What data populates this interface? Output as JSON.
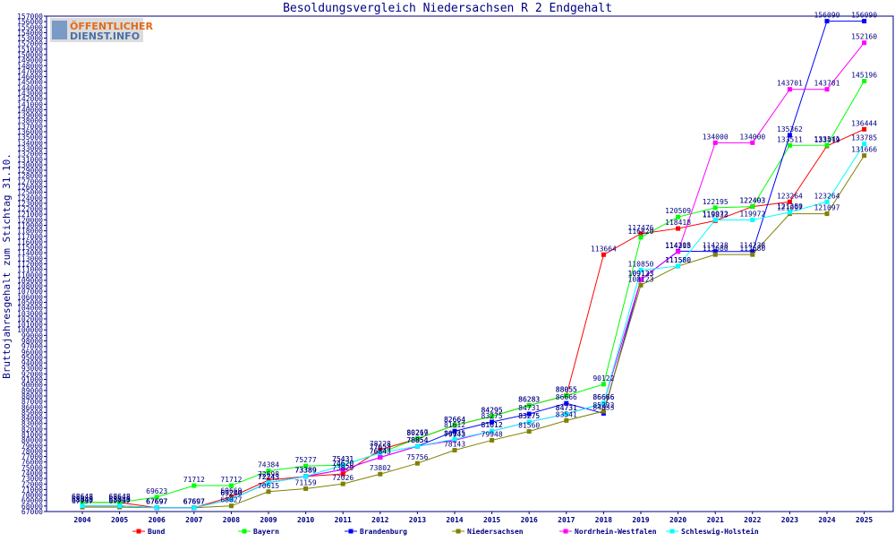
{
  "logo": {
    "line1": "ÖFFENTLICHER",
    "line2": "DIENST.INFO"
  },
  "chart_data": {
    "type": "line",
    "title": "Besoldungsvergleich Niedersachsen R 2 Endgehalt",
    "xlabel": "",
    "ylabel": "Bruttojahresgehalt zum Stichtag 31.10.",
    "ylim": [
      67000,
      157000
    ],
    "ytick_step": 1000,
    "grid": false,
    "legend_position": "bottom",
    "categories": [
      "2004",
      "2005",
      "2006",
      "2007",
      "2008",
      "2009",
      "2010",
      "2011",
      "2012",
      "2013",
      "2014",
      "2015",
      "2016",
      "2017",
      "2018",
      "2019",
      "2020",
      "2021",
      "2022",
      "2023",
      "2024",
      "2025"
    ],
    "series": [
      {
        "name": "Bund",
        "color": "#ff0000",
        "values": [
          68648,
          68648,
          67697,
          67697,
          69669,
          72698,
          73389,
          73829,
          78228,
          80219,
          82664,
          84295,
          86283,
          88055,
          113664,
          117476,
          118418,
          119833,
          122403,
          123264,
          133419,
          136444
        ]
      },
      {
        "name": "Bayern",
        "color": "#00ff00",
        "values": [
          68648,
          68648,
          69623,
          71712,
          71712,
          74384,
          75277,
          75431,
          77653,
          80267,
          82664,
          84295,
          86283,
          88055,
          90122,
          116820,
          120509,
          122195,
          122403,
          133511,
          133541,
          145196
        ]
      },
      {
        "name": "Brandenburg",
        "color": "#0000ff",
        "values": [
          68040,
          68040,
          67697,
          67697,
          69240,
          72243,
          73389,
          74620,
          76843,
          78854,
          81612,
          83275,
          84731,
          86666,
          84833,
          109133,
          114305,
          114238,
          114238,
          135362,
          156090,
          156090
        ]
      },
      {
        "name": "Niedersachsen",
        "color": "#808000",
        "values": [
          67797,
          67797,
          67697,
          67697,
          68027,
          70615,
          71159,
          72026,
          73802,
          75756,
          78143,
          79948,
          81560,
          83541,
          85222,
          108123,
          111580,
          113680,
          113680,
          121097,
          121097,
          131666
        ]
      },
      {
        "name": "Nordrhein-Westfalen",
        "color": "#ff00ff",
        "values": [
          68040,
          68040,
          67697,
          67697,
          69240,
          72243,
          73389,
          74620,
          76843,
          78854,
          79943,
          81612,
          83275,
          84731,
          86666,
          109123,
          114218,
          134000,
          134000,
          143701,
          143701,
          152160
        ]
      },
      {
        "name": "Schleswig-Holstein",
        "color": "#00ffff",
        "values": [
          68040,
          68040,
          67697,
          67697,
          69240,
          72243,
          73389,
          75431,
          77653,
          78854,
          80135,
          81612,
          83275,
          84731,
          86666,
          110850,
          111580,
          119972,
          119972,
          121380,
          123264,
          133785
        ]
      }
    ]
  }
}
